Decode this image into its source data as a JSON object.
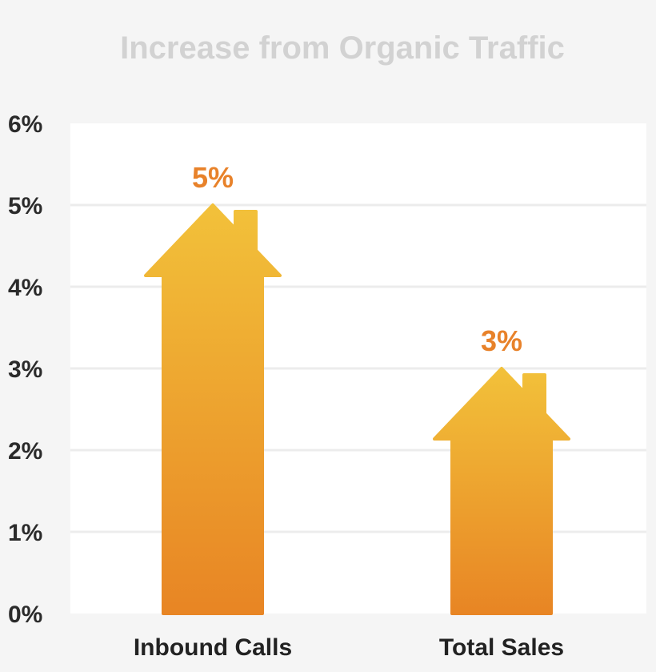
{
  "chart_data": {
    "type": "bar",
    "title": "Increase from Organic Traffic",
    "categories": [
      "Inbound Calls",
      "Total Sales"
    ],
    "values": [
      5,
      3
    ],
    "value_labels": [
      "5%",
      "3%"
    ],
    "ylim": [
      0,
      6
    ],
    "yticks": [
      0,
      1,
      2,
      3,
      4,
      5,
      6
    ],
    "ytick_labels": [
      "0%",
      "1%",
      "2%",
      "3%",
      "4%",
      "5%",
      "6%"
    ],
    "grid": true,
    "bar_shape": "house",
    "colors": {
      "bar_top": "#f2c13a",
      "bar_bottom": "#e88524",
      "data_label": "#e8822a",
      "title": "#d2d2d2",
      "plot_background": "#ffffff",
      "page_background": "#f5f5f5",
      "gridline": "#ececec"
    }
  }
}
